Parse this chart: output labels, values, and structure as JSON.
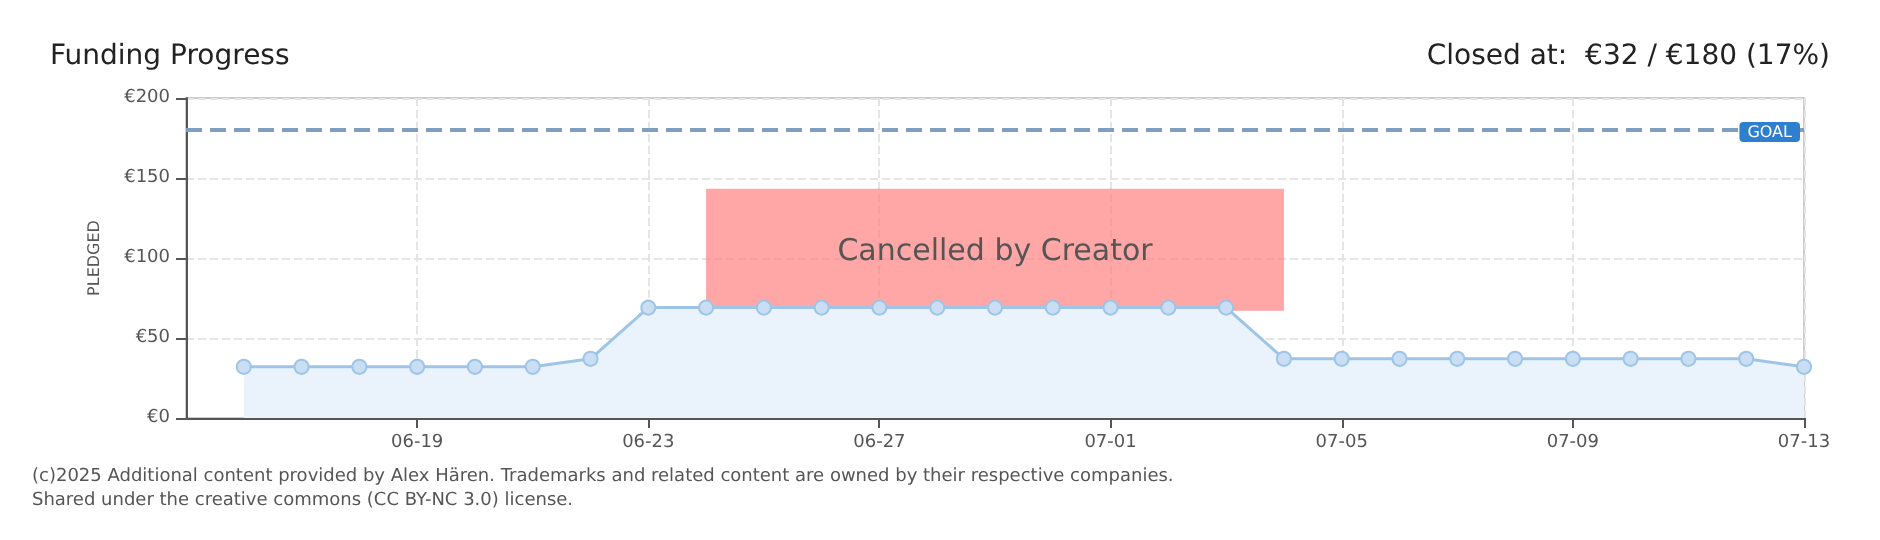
{
  "chart_data": {
    "type": "area",
    "title": "Funding Progress",
    "subtitle": "Closed at:  €32 / €180 (17%)",
    "ylabel": "PLEDGED",
    "x": [
      "--06-16",
      "--06-17",
      "--06-18",
      "--06-19",
      "--06-20",
      "--06-21",
      "--06-22",
      "--06-23",
      "--06-24",
      "--06-25",
      "--06-26",
      "--06-27",
      "--06-28",
      "--06-29",
      "--06-30",
      "--07-01",
      "--07-02",
      "--07-03",
      "--07-04",
      "--07-05",
      "--07-06",
      "--07-07",
      "--07-08",
      "--07-09",
      "--07-10",
      "--07-11",
      "--07-12",
      "--07-13"
    ],
    "series": [
      {
        "color": "#9ec5e8",
        "values": [
          32,
          32,
          32,
          32,
          32,
          32,
          37,
          69,
          69,
          69,
          69,
          69,
          69,
          69,
          69,
          69,
          69,
          69,
          37,
          37,
          37,
          37,
          37,
          37,
          37,
          37,
          37,
          32
        ]
      }
    ],
    "xlim": [
      "--06-15",
      "--07-13"
    ],
    "xticks": [
      {
        "value": "--06-19",
        "label": "06-19"
      },
      {
        "value": "--06-23",
        "label": "06-23"
      },
      {
        "value": "--06-27",
        "label": "06-27"
      },
      {
        "value": "--07-01",
        "label": "07-01"
      },
      {
        "value": "--07-05",
        "label": "07-05"
      },
      {
        "value": "--07-09",
        "label": "07-09"
      },
      {
        "value": "--07-13",
        "label": "07-13"
      }
    ],
    "ylim": [
      0,
      200
    ],
    "yticks": [
      {
        "value": 0,
        "label": "€0"
      },
      {
        "value": 50,
        "label": "€50"
      },
      {
        "value": 100,
        "label": "€100"
      },
      {
        "value": 150,
        "label": "€150"
      },
      {
        "value": 200,
        "label": "€200"
      }
    ],
    "ref_lines": [
      {
        "axis": "y",
        "value": 180,
        "label": "GOAL",
        "color": "#7f9fc0",
        "line_style": "dashed"
      }
    ],
    "bands": [
      {
        "axis": "x",
        "from": "--06-24",
        "to": "--07-04",
        "label": "Cancelled by Creator",
        "color": "#ff8080"
      }
    ],
    "grid": true,
    "marker": "circle",
    "line_style": "solid",
    "annotations": [
      "(c)2025 Additional content provided by Alex Hären. Trademarks and related content are owned by their respective companies.",
      "Shared under the creative commons (CC BY-NC 3.0) license."
    ]
  }
}
